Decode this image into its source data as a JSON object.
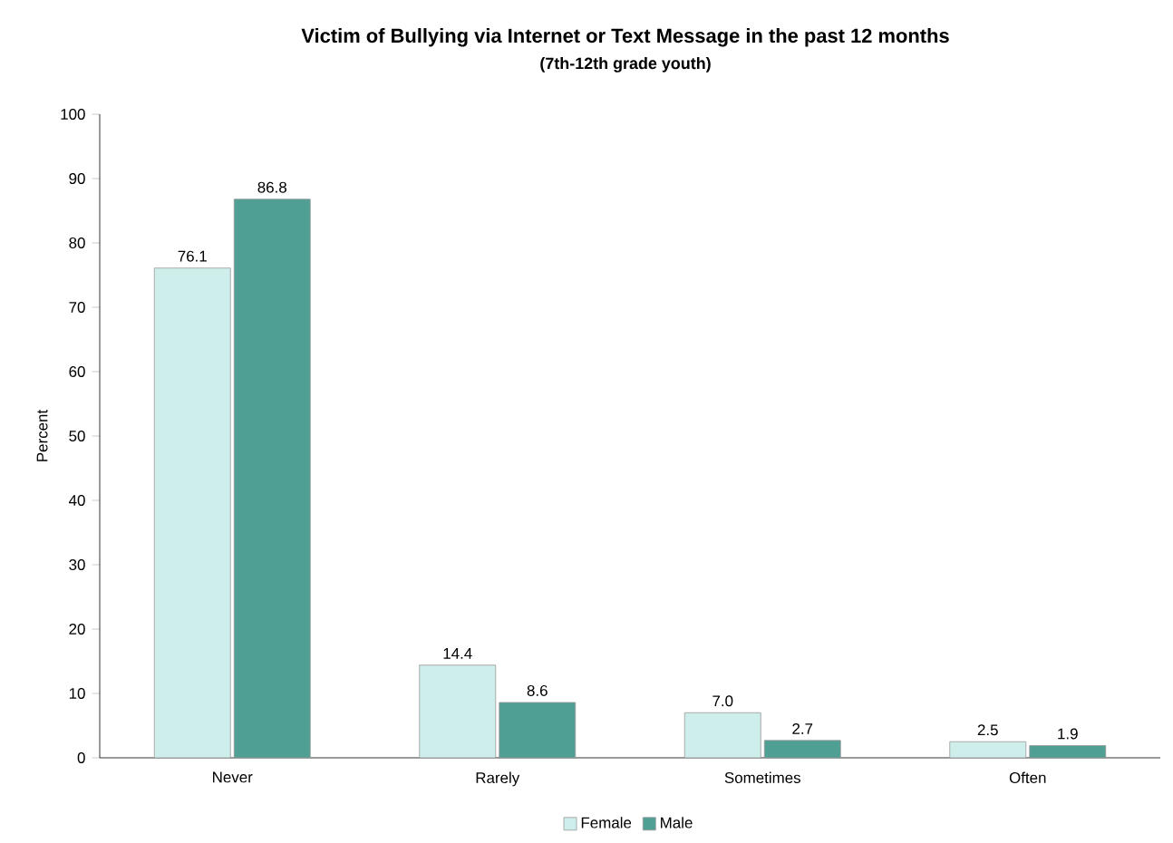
{
  "chart_data": {
    "type": "bar",
    "title": "Victim of Bullying via Internet or Text Message in the past 12 months",
    "subtitle": "(7th-12th grade youth)",
    "ylabel": "Percent",
    "categories": [
      "Never",
      "Rarely",
      "Sometimes",
      "Often"
    ],
    "series": [
      {
        "name": "Female",
        "color": "#cdeeea",
        "values": [
          76.1,
          14.4,
          7.0,
          2.5
        ],
        "value_labels": [
          "76.1",
          "14.4",
          "7.0",
          "2.5"
        ]
      },
      {
        "name": "Male",
        "color": "#4f9f95",
        "values": [
          86.8,
          8.6,
          2.7,
          1.9
        ],
        "value_labels": [
          "86.8",
          "8.6",
          "2.7",
          "1.9"
        ]
      }
    ],
    "ylim": [
      0,
      100
    ],
    "yticks": [
      0,
      10,
      20,
      30,
      40,
      50,
      60,
      70,
      80,
      90,
      100
    ],
    "legend": "bottom"
  }
}
